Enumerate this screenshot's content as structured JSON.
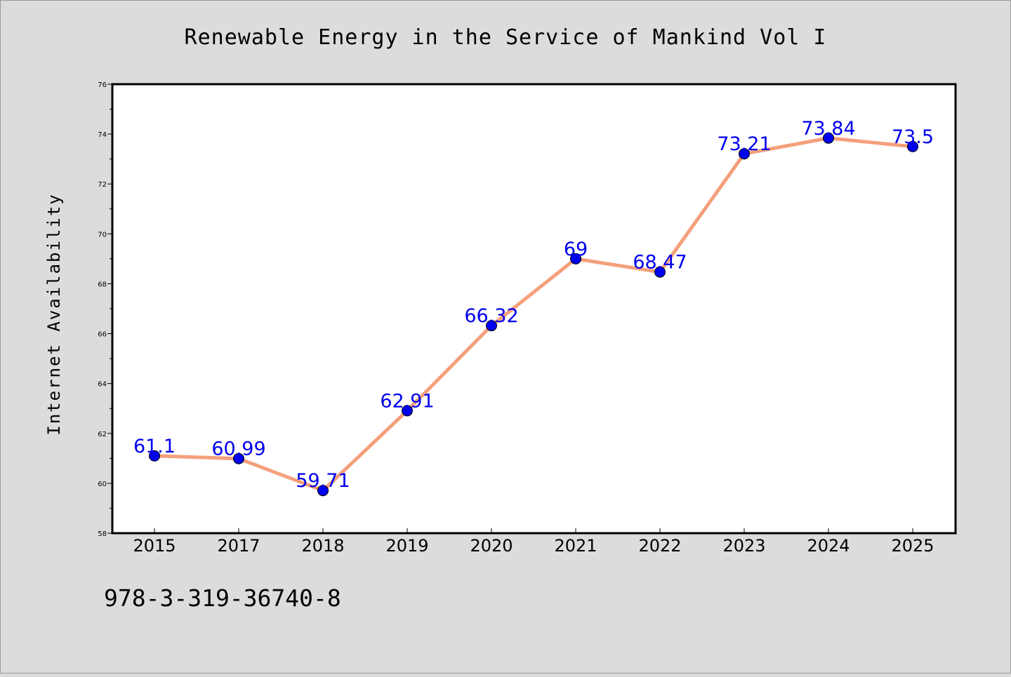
{
  "chart_data": {
    "type": "line",
    "title": "Renewable Energy in the Service of Mankind Vol I",
    "xlabel": "",
    "ylabel": "Internet Availability",
    "categories": [
      "2015",
      "2017",
      "2018",
      "2019",
      "2020",
      "2021",
      "2022",
      "2023",
      "2024",
      "2025"
    ],
    "series": [
      {
        "values": [
          61.1,
          60.99,
          59.71,
          62.91,
          66.32,
          69,
          68.47,
          73.21,
          73.84,
          73.5
        ],
        "labels": [
          "61.1",
          "60.99",
          "59.71",
          "62.91",
          "66.32",
          "69",
          "68.47",
          "73.21",
          "73.84",
          "73.5"
        ]
      }
    ],
    "ylim": [
      58,
      76
    ],
    "yticks": [
      "58",
      "60",
      "62",
      "64",
      "66",
      "68",
      "70",
      "72",
      "74",
      "76"
    ],
    "grid": false,
    "colors": {
      "line": "#f4a07c",
      "marker": "#0000ee",
      "label": "#0000ee",
      "background": "#dcdcdc",
      "plot_background": "#ffffff"
    }
  },
  "footer": {
    "isbn": "978-3-319-36740-8"
  }
}
